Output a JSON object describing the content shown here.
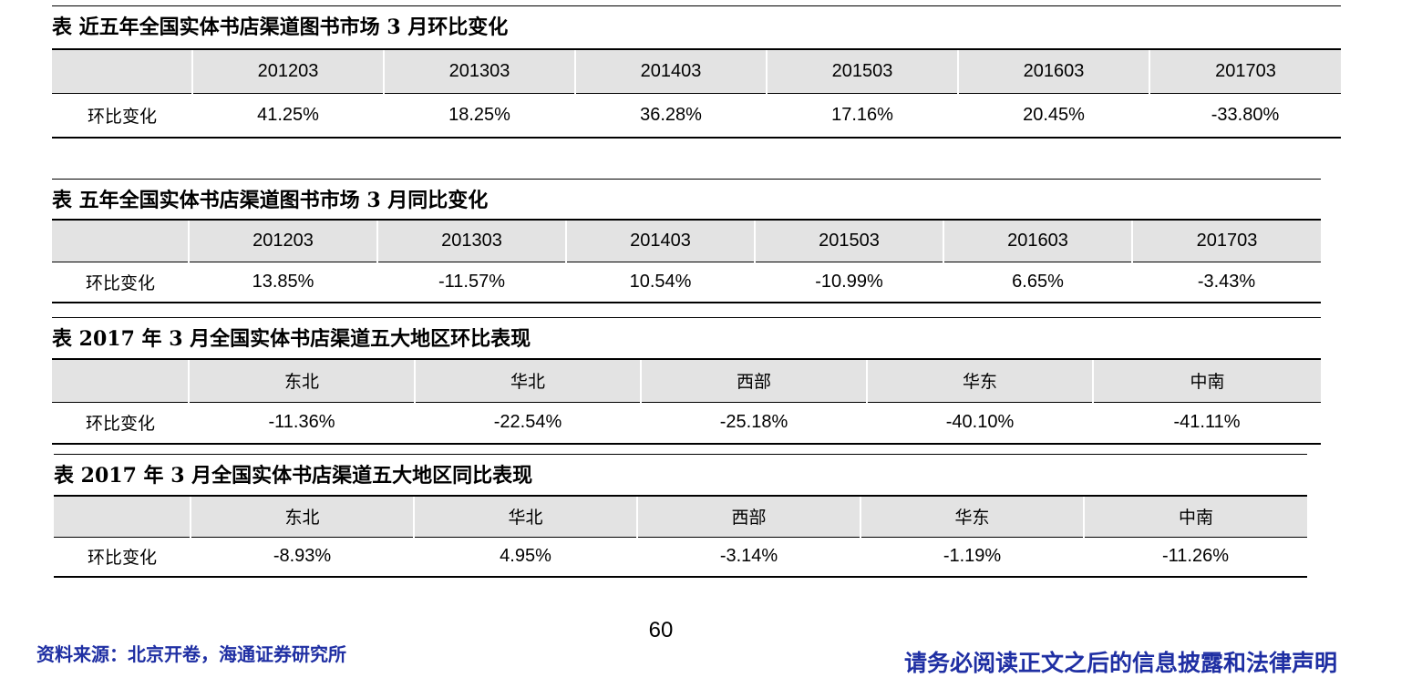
{
  "tables": [
    {
      "title": "表 近五年全国实体书店渠道图书市场 3 月环比变化",
      "headers": [
        "",
        "201203",
        "201303",
        "201403",
        "201503",
        "201603",
        "201703"
      ],
      "row": {
        "label": "环比变化",
        "values": [
          "41.25%",
          "18.25%",
          "36.28%",
          "17.16%",
          "20.45%",
          "-33.80%"
        ]
      }
    },
    {
      "title": "表 五年全国实体书店渠道图书市场 3 月同比变化",
      "headers": [
        "",
        "201203",
        "201303",
        "201403",
        "201503",
        "201603",
        "201703"
      ],
      "row": {
        "label": "环比变化",
        "values": [
          "13.85%",
          "-11.57%",
          "10.54%",
          "-10.99%",
          "6.65%",
          "-3.43%"
        ]
      }
    },
    {
      "title": "表 2017 年 3 月全国实体书店渠道五大地区环比表现",
      "headers": [
        "",
        "东北",
        "华北",
        "西部",
        "华东",
        "中南"
      ],
      "row": {
        "label": "环比变化",
        "values": [
          "-11.36%",
          "-22.54%",
          "-25.18%",
          "-40.10%",
          "-41.11%"
        ]
      }
    },
    {
      "title": "表 2017 年 3 月全国实体书店渠道五大地区同比表现",
      "headers": [
        "",
        "东北",
        "华北",
        "西部",
        "华东",
        "中南"
      ],
      "row": {
        "label": "环比变化",
        "values": [
          "-8.93%",
          "4.95%",
          "-3.14%",
          "-1.19%",
          "-11.26%"
        ]
      }
    }
  ],
  "footer": {
    "page_number": "60",
    "source": "资料来源：北京开卷，海通证券研究所",
    "disclaimer": "请务必阅读正文之后的信息披露和法律声明"
  }
}
